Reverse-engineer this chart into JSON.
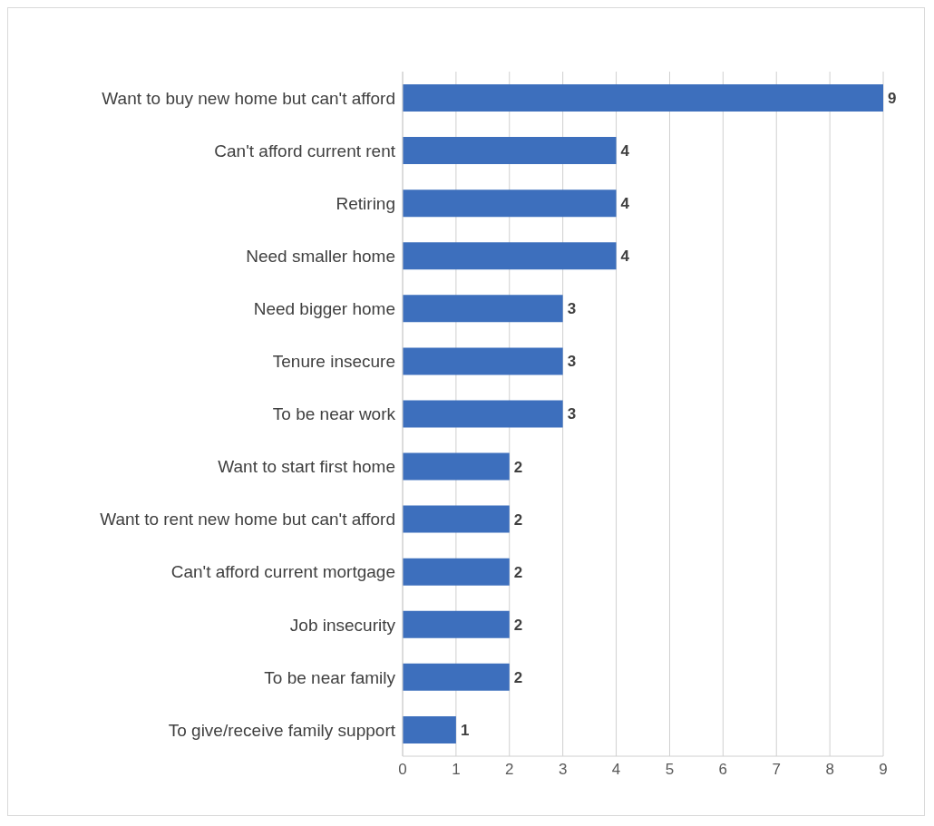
{
  "chart_data": {
    "type": "bar",
    "orientation": "horizontal",
    "categories": [
      "Want to buy new home but can't afford",
      "Can't afford current rent",
      "Retiring",
      "Need smaller home",
      "Need bigger home",
      "Tenure insecure",
      "To be near work",
      "Want to start first home",
      "Want to rent new home but can't afford",
      "Can't afford current mortgage",
      "Job insecurity",
      "To be near family",
      "To give/receive family support"
    ],
    "values": [
      9,
      4,
      4,
      4,
      3,
      3,
      3,
      2,
      2,
      2,
      2,
      2,
      1
    ],
    "color": "#3d6fbd",
    "xlim": [
      0,
      9
    ],
    "xticks": [
      0,
      1,
      2,
      3,
      4,
      5,
      6,
      7,
      8,
      9
    ],
    "grid": "x",
    "data_labels": true,
    "legend": false
  }
}
